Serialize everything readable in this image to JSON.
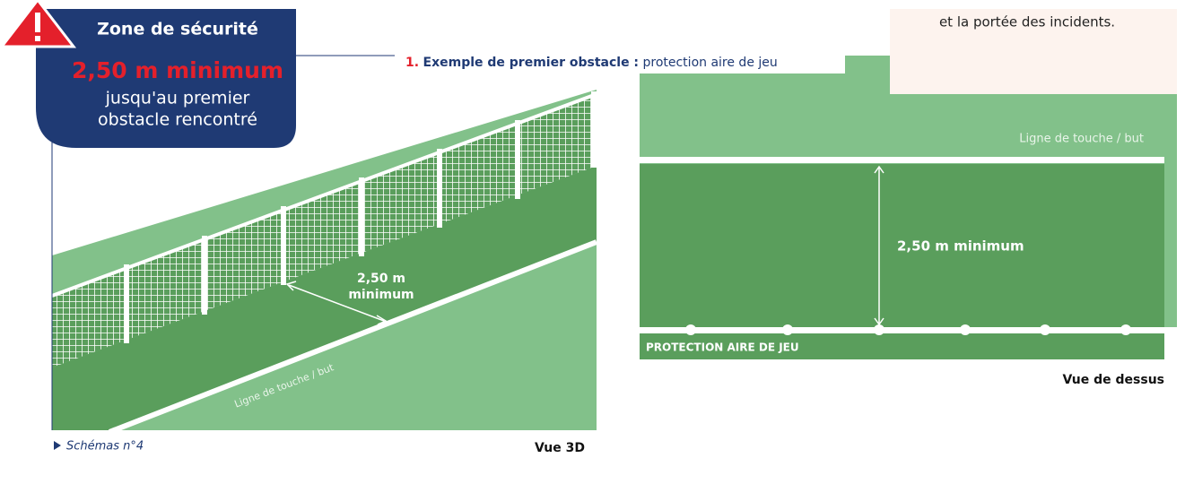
{
  "warning": {
    "title": "Zone de sécurité",
    "highlight": "2,50 m minimum",
    "lines": [
      "jusqu'au premier",
      "obstacle rencontré"
    ]
  },
  "caption": {
    "number": "1.",
    "title": "Exemple de premier obstacle :",
    "text": "protection aire de jeu"
  },
  "note": "et la portée des incidents.",
  "view_3d": {
    "distance_lines": [
      "2,50 m",
      "minimum"
    ],
    "line_label": "Ligne de touche / but",
    "label": "Vue 3D"
  },
  "view_top": {
    "line_label": "Ligne de touche / but",
    "distance": "2,50 m minimum",
    "barrier_label": "PROTECTION AIRE DE JEU",
    "label": "Vue de dessus"
  },
  "footnote": "Schémas n°4"
}
